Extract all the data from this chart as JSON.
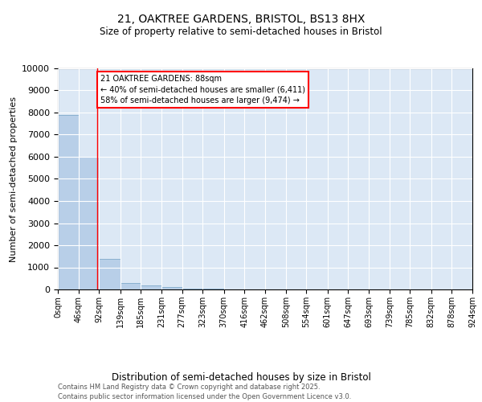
{
  "title": "21, OAKTREE GARDENS, BRISTOL, BS13 8HX",
  "subtitle": "Size of property relative to semi-detached houses in Bristol",
  "xlabel": "Distribution of semi-detached houses by size in Bristol",
  "ylabel": "Number of semi-detached properties",
  "bar_color": "#b8cfe8",
  "bar_edge_color": "#8ab0d0",
  "background_color": "#dce8f5",
  "grid_color": "#ffffff",
  "red_line_x": 88,
  "annotation_title": "21 OAKTREE GARDENS: 88sqm",
  "annotation_line1": "← 40% of semi-detached houses are smaller (6,411)",
  "annotation_line2": "58% of semi-detached houses are larger (9,474) →",
  "footer_line1": "Contains HM Land Registry data © Crown copyright and database right 2025.",
  "footer_line2": "Contains public sector information licensed under the Open Government Licence v3.0.",
  "bin_edges": [
    0,
    46,
    92,
    139,
    185,
    231,
    277,
    323,
    370,
    416,
    462,
    508,
    554,
    601,
    647,
    693,
    739,
    785,
    832,
    878,
    924
  ],
  "bar_heights": [
    7900,
    6000,
    1400,
    300,
    200,
    100,
    50,
    30,
    10,
    5,
    3,
    2,
    1,
    1,
    1,
    0,
    0,
    0,
    0,
    0
  ],
  "ylim": [
    0,
    10000
  ],
  "yticks": [
    0,
    1000,
    2000,
    3000,
    4000,
    5000,
    6000,
    7000,
    8000,
    9000,
    10000
  ],
  "figsize": [
    6.0,
    5.0
  ],
  "dpi": 100
}
